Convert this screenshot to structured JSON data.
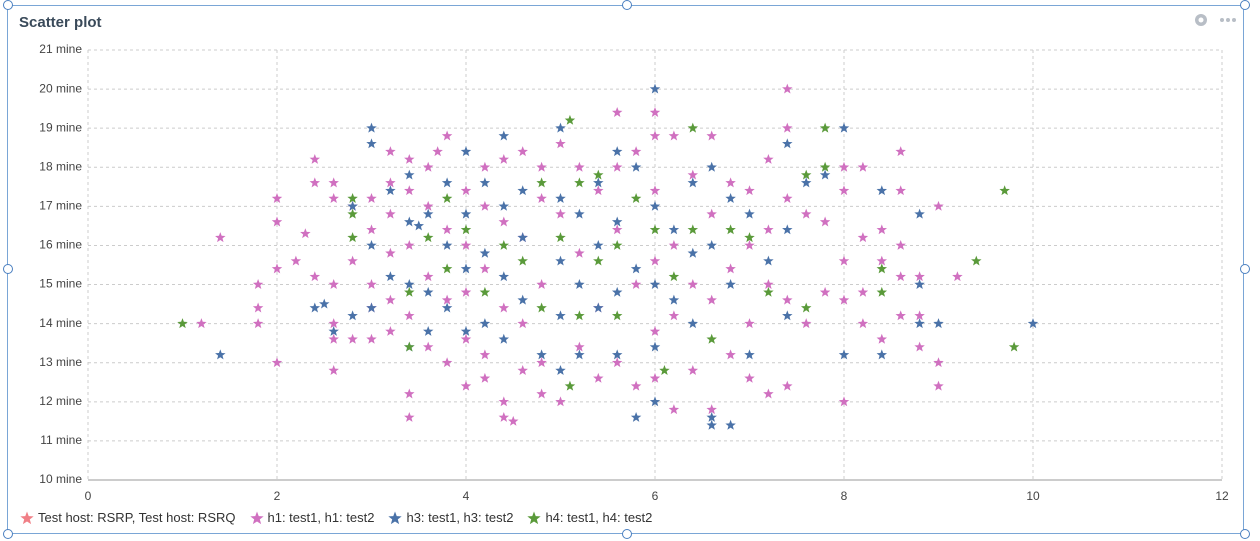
{
  "chart_data": {
    "type": "scatter",
    "title": "Scatter plot",
    "xlim": [
      0,
      12
    ],
    "xticks": [
      0,
      2,
      4,
      6,
      8,
      10,
      12
    ],
    "ylim": [
      10,
      21
    ],
    "yticks": [
      {
        "value": 10,
        "label": "10 mine"
      },
      {
        "value": 11,
        "label": "11 mine"
      },
      {
        "value": 12,
        "label": "12 mine"
      },
      {
        "value": 13,
        "label": "13 mine"
      },
      {
        "value": 14,
        "label": "14 mine"
      },
      {
        "value": 15,
        "label": "15 mine"
      },
      {
        "value": 16,
        "label": "16 mine"
      },
      {
        "value": 17,
        "label": "17 mine"
      },
      {
        "value": 18,
        "label": "18 mine"
      },
      {
        "value": 19,
        "label": "19 mine"
      },
      {
        "value": 20,
        "label": "20 mine"
      },
      {
        "value": 21,
        "label": "21 mine"
      }
    ],
    "grid": true,
    "series": [
      {
        "name": "Test host: RSRP, Test host: RSRQ",
        "color": "#f07f86",
        "x": [],
        "y": []
      },
      {
        "name": "h1: test1, h1: test2",
        "color": "#d070c0",
        "x": [
          1.2,
          1.4,
          1.8,
          1.8,
          1.8,
          2,
          2,
          2,
          2,
          2.2,
          2.3,
          2.4,
          2.4,
          2.4,
          2.6,
          2.6,
          2.6,
          2.6,
          2.6,
          2.6,
          2.8,
          2.8,
          2.8,
          3,
          3,
          3,
          3,
          3,
          3.2,
          3.2,
          3.2,
          3.2,
          3.2,
          3.2,
          3.4,
          3.4,
          3.4,
          3.4,
          3.4,
          3.4,
          3.6,
          3.6,
          3.6,
          3.6,
          3.7,
          3.8,
          3.8,
          3.8,
          3.8,
          4,
          4,
          4,
          4,
          4,
          4.2,
          4.2,
          4.2,
          4.2,
          4.2,
          4.4,
          4.4,
          4.4,
          4.4,
          4.4,
          4.5,
          4.6,
          4.6,
          4.6,
          4.6,
          4.8,
          4.8,
          4.8,
          4.8,
          4.8,
          5,
          5,
          5,
          5.2,
          5.2,
          5.2,
          5.4,
          5.4,
          5.4,
          5.6,
          5.6,
          5.6,
          5.6,
          5.8,
          5.8,
          5.8,
          6,
          6,
          6,
          6,
          6,
          6,
          6.2,
          6.2,
          6.2,
          6.2,
          6.4,
          6.4,
          6.4,
          6.6,
          6.6,
          6.6,
          6.6,
          6.8,
          6.8,
          6.8,
          7,
          7,
          7,
          7,
          7.2,
          7.2,
          7.2,
          7.2,
          7.4,
          7.4,
          7.4,
          7.4,
          7.4,
          7.6,
          7.6,
          7.8,
          7.8,
          8,
          8,
          8,
          8,
          8,
          8.2,
          8.2,
          8.2,
          8.2,
          8.4,
          8.4,
          8.4,
          8.6,
          8.6,
          8.6,
          8.6,
          8.6,
          8.8,
          8.8,
          8.8,
          9,
          9,
          9,
          9.2
        ],
        "y": [
          14,
          16.2,
          15,
          14.4,
          14,
          17.2,
          16.6,
          15.4,
          13,
          15.6,
          16.3,
          18.2,
          17.6,
          15.2,
          17.6,
          17.2,
          15,
          14,
          13.6,
          12.8,
          17,
          15.6,
          13.6,
          17.2,
          16.4,
          15,
          14.4,
          13.6,
          18.4,
          17.6,
          16.8,
          15.8,
          14.6,
          13.8,
          18.2,
          17.4,
          16,
          14.2,
          12.2,
          11.6,
          18,
          17,
          15.2,
          13.4,
          18.4,
          18.8,
          16.4,
          14.6,
          13,
          17.4,
          16,
          14.8,
          13.6,
          12.4,
          18,
          17,
          15.4,
          13.2,
          12.6,
          18.2,
          16.6,
          14.4,
          12,
          11.6,
          11.5,
          18.4,
          16.2,
          14,
          12.8,
          18,
          17.2,
          15,
          13,
          12.2,
          18.6,
          16.8,
          12,
          18,
          15.8,
          13.4,
          17.4,
          14.4,
          12.6,
          19.4,
          18,
          16.4,
          13,
          18.4,
          15,
          12.4,
          19.4,
          18.8,
          17.4,
          15.6,
          13.8,
          12.6,
          18.8,
          16,
          14.2,
          11.8,
          17.8,
          15,
          12.8,
          18.8,
          16.8,
          14.6,
          11.8,
          17.6,
          15.4,
          13.2,
          17.4,
          16,
          14,
          12.6,
          18.2,
          16.4,
          15,
          12.2,
          20,
          19,
          17.2,
          14.6,
          12.4,
          16.8,
          14,
          16.6,
          14.8,
          18,
          17.4,
          15.6,
          14.6,
          12,
          18,
          16.2,
          14.8,
          14,
          16.4,
          15.6,
          13.6,
          18.4,
          17.4,
          16,
          15.2,
          14.2,
          15.2,
          14.2,
          13.4,
          17,
          13,
          12.4,
          15.2
        ]
      },
      {
        "name": "h3: test1, h3: test2",
        "color": "#4a72a8",
        "x": [
          1.4,
          2.4,
          2.5,
          2.6,
          2.8,
          2.8,
          3,
          3,
          3,
          3,
          3.2,
          3.2,
          3.4,
          3.4,
          3.4,
          3.4,
          3.5,
          3.6,
          3.6,
          3.6,
          3.8,
          3.8,
          3.8,
          4,
          4,
          4,
          4,
          4.2,
          4.2,
          4.2,
          4.4,
          4.4,
          4.4,
          4.4,
          4.6,
          4.6,
          4.6,
          4.8,
          5,
          5,
          5,
          5,
          5,
          5.2,
          5.2,
          5.2,
          5.4,
          5.4,
          5.4,
          5.6,
          5.6,
          5.6,
          5.6,
          5.8,
          5.8,
          5.8,
          6,
          6,
          6,
          6,
          6,
          6.2,
          6.2,
          6.4,
          6.4,
          6.4,
          6.6,
          6.6,
          6.6,
          6.6,
          6.8,
          6.8,
          6.8,
          7,
          7,
          7.2,
          7.4,
          7.4,
          7.4,
          7.6,
          7.8,
          8,
          8,
          8.4,
          8.4,
          8.8,
          8.8,
          8.8,
          9,
          10
        ],
        "y": [
          13.2,
          14.4,
          14.5,
          13.8,
          14.2,
          17,
          19,
          18.6,
          16,
          14.4,
          17.4,
          15.2,
          17.8,
          16.6,
          15,
          13.4,
          16.5,
          16.8,
          14.8,
          13.8,
          17.6,
          16,
          14.4,
          18.4,
          16.8,
          15.4,
          13.8,
          17.6,
          15.8,
          14,
          18.8,
          17,
          15.2,
          13.6,
          17.4,
          16.2,
          14.6,
          13.2,
          19,
          17.2,
          15.6,
          14.2,
          12.8,
          16.8,
          15,
          13.2,
          17.6,
          16,
          14.4,
          18.4,
          16.6,
          14.8,
          13.2,
          18,
          15.4,
          11.6,
          20,
          17,
          15,
          13.4,
          12,
          16.4,
          14.6,
          17.6,
          15.8,
          14,
          18,
          16,
          11.6,
          11.4,
          17.2,
          15,
          11.4,
          16.8,
          13.2,
          15.6,
          18.6,
          16.4,
          14.2,
          17.6,
          17.8,
          19,
          13.2,
          17.4,
          13.2,
          16.8,
          15,
          14,
          14,
          14
        ]
      },
      {
        "name": "h4: test1, h4: test2",
        "color": "#5a9a3a",
        "x": [
          1,
          2.8,
          2.8,
          2.8,
          3.4,
          3.4,
          3.6,
          3.8,
          3.8,
          4,
          4.2,
          4.4,
          4.6,
          4.8,
          4.8,
          5,
          5.1,
          5.2,
          5.2,
          5.1,
          5.4,
          5.4,
          5.6,
          5.6,
          5.8,
          6,
          6.1,
          6.2,
          6.4,
          6.4,
          6.6,
          6.8,
          7,
          7.2,
          7.6,
          7.6,
          7.8,
          7.8,
          8.4,
          8.4,
          9.4,
          9.7,
          9.8
        ],
        "y": [
          14,
          17.2,
          16.8,
          16.2,
          14.8,
          13.4,
          16.2,
          17.2,
          15.4,
          16.4,
          14.8,
          16,
          15.6,
          17.6,
          14.4,
          16.2,
          19.2,
          17.6,
          14.2,
          12.4,
          17.8,
          15.6,
          16,
          14.2,
          17.2,
          16.4,
          12.8,
          15.2,
          19,
          16.4,
          13.6,
          16.4,
          16.2,
          14.8,
          17.8,
          14.4,
          19,
          18,
          15.4,
          14.8,
          15.6,
          17.4,
          13.4
        ]
      }
    ]
  }
}
